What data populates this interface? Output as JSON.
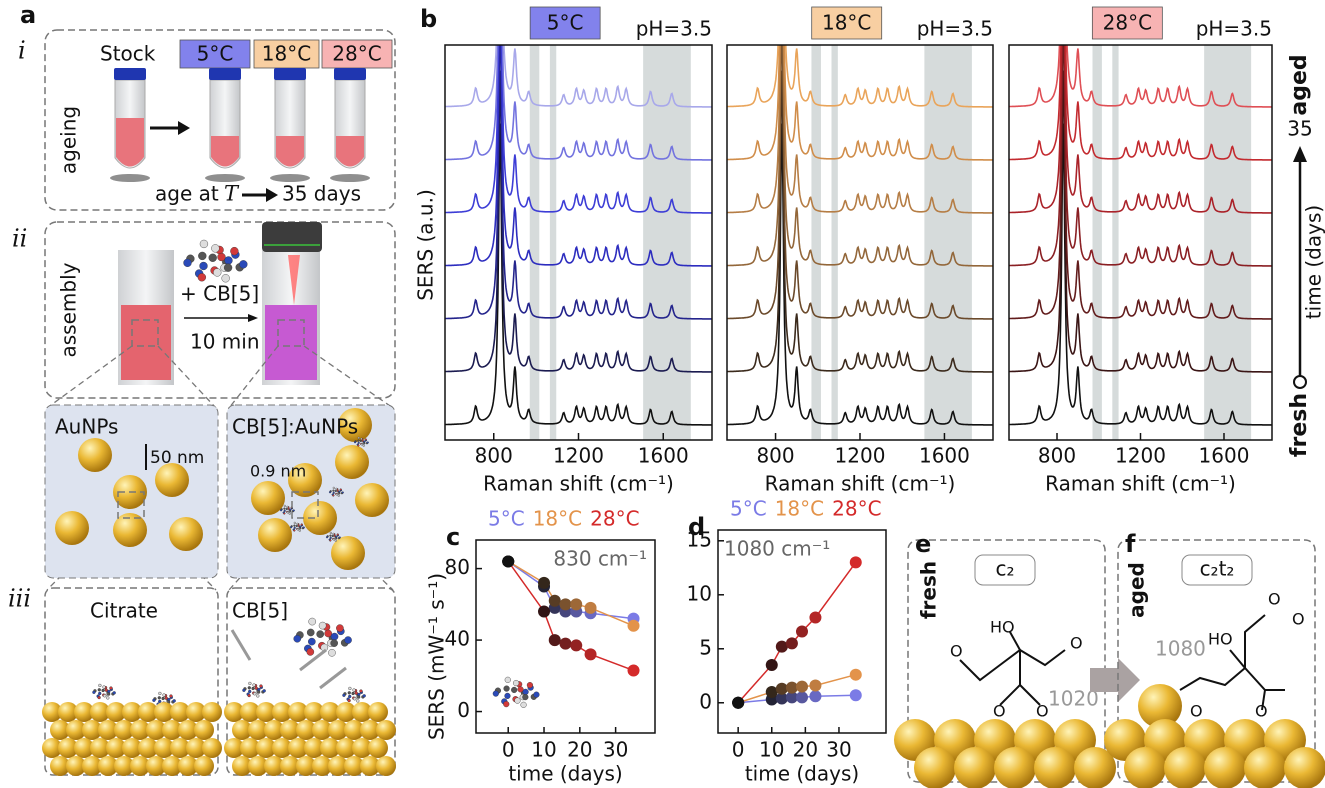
{
  "panel_a": {
    "label": "a",
    "roman": [
      "i",
      "ii",
      "iii"
    ],
    "stock": "Stock",
    "temps": [
      "5°C",
      "18°C",
      "28°C"
    ],
    "temp_colors": [
      "#8282ec",
      "#f8cfa2",
      "#f7b3b3"
    ],
    "ageing": "ageing",
    "age_at": "age at",
    "T": "T",
    "days": "35 days",
    "assembly": "assembly",
    "plus_cb": "+ CB[5]",
    "ten_min": "10 min",
    "aunps": "AuNPs",
    "scale": "50 nm",
    "cb_aunps": "CB[5]:AuNPs",
    "gap": "0.9 nm",
    "citrate": "Citrate",
    "cb5": "CB[5]"
  },
  "spectra": {
    "label": "b",
    "ylabel": "SERS (a.u.)",
    "xlabel": "Raman shift (cm⁻¹)",
    "xlim": [
      570,
      1830
    ],
    "xticks": [
      800,
      1200,
      1600
    ],
    "bands": [
      [
        970,
        1015
      ],
      [
        1065,
        1095
      ],
      [
        1505,
        1730
      ]
    ],
    "peak_shifts": [
      715,
      830,
      900,
      965,
      1130,
      1190,
      1225,
      1285,
      1330,
      1385,
      1425,
      1540,
      1640
    ],
    "peak_heights": [
      0.45,
      8,
      1.4,
      0.35,
      0.3,
      0.45,
      0.4,
      0.45,
      0.45,
      0.5,
      0.45,
      0.4,
      0.35
    ],
    "panels": [
      {
        "title": "5°C",
        "ph": "pH=3.5",
        "box_color": "#8282ec",
        "colors": [
          "#111111",
          "#1b1b50",
          "#24248c",
          "#2d2dbf",
          "#3d3dd6",
          "#7373df",
          "#a8a8ea"
        ]
      },
      {
        "title": "18°C",
        "ph": "pH=3.5",
        "box_color": "#f8cfa2",
        "colors": [
          "#111111",
          "#3b2a1c",
          "#6b4a2b",
          "#93673a",
          "#b57d45",
          "#d08d4a",
          "#e9a45a"
        ]
      },
      {
        "title": "28°C",
        "ph": "pH=3.5",
        "box_color": "#f7b3b3",
        "colors": [
          "#111111",
          "#3a1515",
          "#621c1c",
          "#8a1f23",
          "#aa2229",
          "#c32a2f",
          "#df4f55"
        ]
      }
    ],
    "time_axis": {
      "aged": "aged",
      "end": "35",
      "label": "time (days)",
      "fresh": "fresh"
    }
  },
  "chart_data": [
    {
      "type": "line",
      "panel": "c",
      "annotation": "830 cm⁻¹",
      "xlabel": "time (days)",
      "ylabel": "SERS (mW⁻¹ s⁻¹)",
      "x": [
        0,
        10,
        13,
        16,
        19,
        23,
        35
      ],
      "xlim": [
        -9,
        41
      ],
      "xticks": [
        0,
        10,
        20,
        30
      ],
      "ylim": [
        -12,
        96
      ],
      "yticks": [
        0,
        40,
        80
      ],
      "series": [
        {
          "name": "5°C",
          "color": "#7b7be6",
          "values": [
            84,
            70,
            58,
            56,
            56,
            55,
            52
          ]
        },
        {
          "name": "18°C",
          "color": "#e3934a",
          "values": [
            84,
            72,
            62,
            60,
            60,
            58,
            48
          ]
        },
        {
          "name": "28°C",
          "color": "#d42a2a",
          "values": [
            84,
            56,
            40,
            38,
            37,
            32,
            23
          ]
        }
      ]
    },
    {
      "type": "line",
      "panel": "d",
      "annotation": "1080 cm⁻¹",
      "xlabel": "time (days)",
      "x": [
        0,
        10,
        13,
        16,
        19,
        23,
        35
      ],
      "xlim": [
        -6,
        44
      ],
      "xticks": [
        0,
        10,
        20,
        30
      ],
      "ylim": [
        -2.8,
        16
      ],
      "yticks": [
        0,
        5,
        10,
        15
      ],
      "series": [
        {
          "name": "5°C",
          "color": "#7b7be6",
          "values": [
            0,
            0.3,
            0.4,
            0.5,
            0.5,
            0.6,
            0.7
          ]
        },
        {
          "name": "18°C",
          "color": "#e3934a",
          "values": [
            0,
            1,
            1.3,
            1.4,
            1.5,
            1.6,
            2.6
          ]
        },
        {
          "name": "28°C",
          "color": "#d42a2a",
          "values": [
            0,
            3.5,
            5.2,
            5.5,
            6.6,
            7.9,
            13
          ]
        }
      ]
    }
  ],
  "panel_e": {
    "label": "e",
    "state": "fresh",
    "species": "c₂",
    "hydroxyl": "HO",
    "oxygen": "O",
    "band": "1020"
  },
  "panel_f": {
    "label": "f",
    "state": "aged",
    "species": "c₂t₂",
    "hydroxyl": "HO",
    "oxygen": "O",
    "band": "1080"
  }
}
